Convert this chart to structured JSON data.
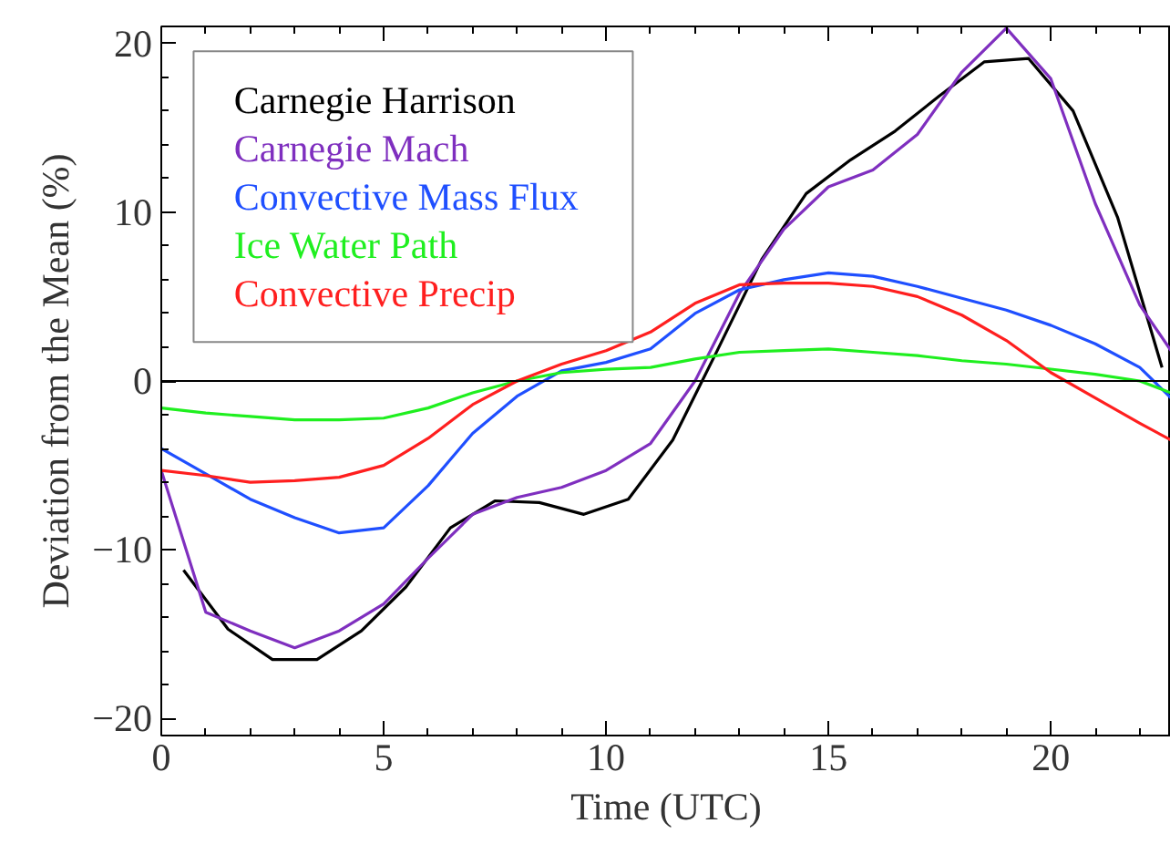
{
  "chart_data": {
    "type": "line",
    "xlabel": "Time (UTC)",
    "ylabel": "Deviation from the Mean (%)",
    "xlim": [
      0,
      22.7
    ],
    "ylim": [
      -21,
      21
    ],
    "xticks": [
      0,
      5,
      10,
      15,
      20
    ],
    "yticks": [
      -20,
      -10,
      0,
      10,
      20
    ],
    "grid": false,
    "legend": "top left",
    "marker": "none",
    "line_style": "solid",
    "ref_lines": [
      {
        "axis": "y",
        "value": 0,
        "color": "#000000"
      }
    ],
    "series": [
      {
        "name": "Carnegie Harrison",
        "color": "#000000",
        "x": [
          0.5,
          1.5,
          2.5,
          3.5,
          4.5,
          5.5,
          6.5,
          7.5,
          8.5,
          9.5,
          10.5,
          11.5,
          12.5,
          13.5,
          14.5,
          15.5,
          16.5,
          17.5,
          18.5,
          19.5,
          20.5,
          21.5,
          22.5
        ],
        "values": [
          -11.2,
          -14.7,
          -16.5,
          -16.5,
          -14.8,
          -12.2,
          -8.7,
          -7.1,
          -7.2,
          -7.9,
          -7.0,
          -3.5,
          1.8,
          7.2,
          11.1,
          13.1,
          14.8,
          16.9,
          18.9,
          19.1,
          16.0,
          9.7,
          0.8
        ]
      },
      {
        "name": "Carnegie Mach",
        "color": "#7f2fbf",
        "x": [
          0,
          1,
          2,
          3,
          4,
          5,
          6,
          7,
          8,
          9,
          10,
          11,
          12,
          13,
          14,
          15,
          16,
          17,
          18,
          19,
          20,
          21,
          22,
          22.7
        ],
        "values": [
          -5.3,
          -13.7,
          -14.8,
          -15.8,
          -14.8,
          -13.2,
          -10.5,
          -7.9,
          -6.9,
          -6.3,
          -5.3,
          -3.7,
          0,
          5.2,
          9.0,
          11.5,
          12.5,
          14.6,
          18.3,
          20.9,
          17.9,
          10.5,
          4.5,
          1.8
        ]
      },
      {
        "name": "Convective Mass Flux",
        "color": "#1f4fff",
        "x": [
          0,
          1,
          2,
          3,
          4,
          5,
          6,
          7,
          8,
          9,
          10,
          11,
          12,
          13,
          14,
          15,
          16,
          17,
          18,
          19,
          20,
          21,
          22,
          22.7
        ],
        "values": [
          -4.0,
          -5.5,
          -7.0,
          -8.1,
          -9.0,
          -8.7,
          -6.2,
          -3.1,
          -0.9,
          0.6,
          1.1,
          1.9,
          4.0,
          5.4,
          6.0,
          6.4,
          6.2,
          5.6,
          4.9,
          4.2,
          3.3,
          2.2,
          0.8,
          -1.0
        ]
      },
      {
        "name": "Ice Water Path",
        "color": "#1fef1f",
        "x": [
          0,
          1,
          2,
          3,
          4,
          5,
          6,
          7,
          8,
          9,
          10,
          11,
          12,
          13,
          14,
          15,
          16,
          17,
          18,
          19,
          20,
          21,
          22,
          22.7
        ],
        "values": [
          -1.6,
          -1.9,
          -2.1,
          -2.3,
          -2.3,
          -2.2,
          -1.6,
          -0.7,
          0,
          0.5,
          0.7,
          0.8,
          1.3,
          1.7,
          1.8,
          1.9,
          1.7,
          1.5,
          1.2,
          1.0,
          0.7,
          0.4,
          0,
          -0.7
        ]
      },
      {
        "name": "Convective Precip",
        "color": "#ff1f1f",
        "x": [
          0,
          1,
          2,
          3,
          4,
          5,
          6,
          7,
          8,
          9,
          10,
          11,
          12,
          13,
          14,
          15,
          16,
          17,
          18,
          19,
          20,
          21,
          22,
          22.7
        ],
        "values": [
          -5.3,
          -5.6,
          -6.0,
          -5.9,
          -5.7,
          -5.0,
          -3.4,
          -1.4,
          0,
          1.0,
          1.8,
          2.9,
          4.6,
          5.7,
          5.8,
          5.8,
          5.6,
          5.0,
          3.9,
          2.4,
          0.5,
          -1.0,
          -2.5,
          -3.5
        ]
      }
    ]
  }
}
